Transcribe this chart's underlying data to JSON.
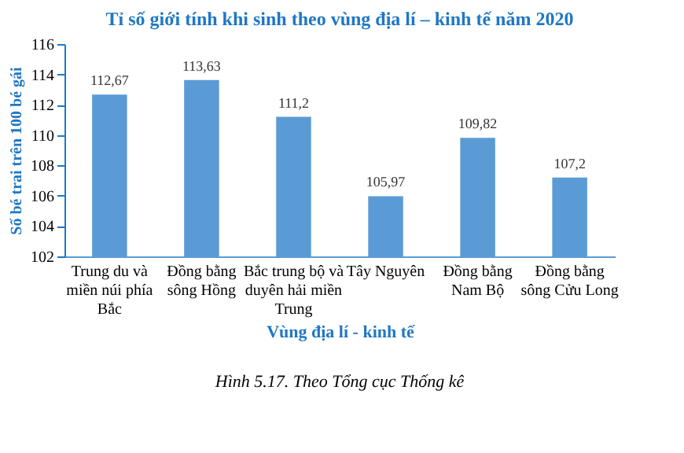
{
  "chart_data": {
    "type": "bar",
    "title": "Tỉ số giới tính khi sinh theo vùng địa lí – kinh tế năm 2020",
    "xlabel": "Vùng địa lí - kinh tế",
    "ylabel": "Số bé trai trên 100 bé gái",
    "categories": [
      "Trung du và\nmiền núi phía\nBắc",
      "Đồng bằng\nsông Hồng",
      "Bắc trung bộ và\nduyên hải miền\nTrung",
      "Tây Nguyên",
      "Đồng bằng\nNam Bộ",
      "Đồng bằng\nsông Cửu Long"
    ],
    "values": [
      112.67,
      113.63,
      111.2,
      105.97,
      109.82,
      107.2
    ],
    "value_labels": [
      "112,67",
      "113,63",
      "111,2",
      "105,97",
      "109,82",
      "107,2"
    ],
    "color": "#5b9bd5",
    "ylim": [
      102,
      116
    ],
    "yticks": [
      102,
      104,
      106,
      108,
      110,
      112,
      114,
      116
    ],
    "grid": false,
    "annotations": [
      "Hình 5.17. Theo Tổng cục Thống kê"
    ]
  }
}
